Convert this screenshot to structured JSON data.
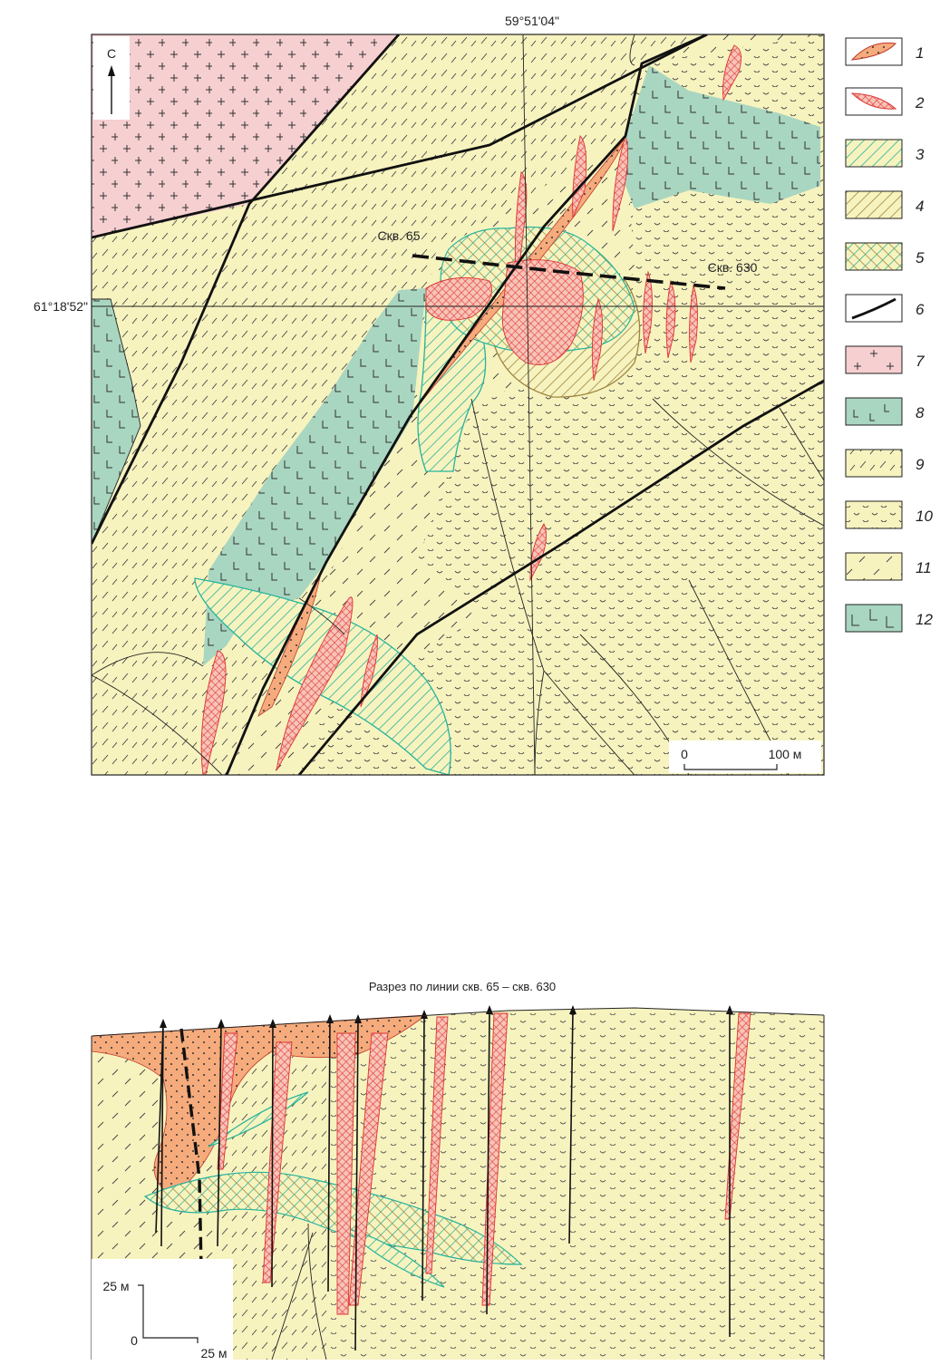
{
  "map": {
    "longitude_label": "59°51'04\"",
    "latitude_label": "61°18'52\"",
    "north_label": "С",
    "well_65_label": "Скв. 65",
    "well_630_label": "Скв. 630",
    "scale_zero": "0",
    "scale_value": "100 м"
  },
  "section": {
    "title": "Разрез по линии скв. 65 – скв. 630",
    "scale_vertical": "25 м",
    "scale_zero": "0",
    "scale_horizontal": "25 м"
  },
  "legend": {
    "items": [
      {
        "number": "1",
        "symbol": "orange-dotted-lens"
      },
      {
        "number": "2",
        "symbol": "red-crosshatch-lens"
      },
      {
        "number": "3",
        "symbol": "teal-diagonal-hatch"
      },
      {
        "number": "4",
        "symbol": "olive-diagonal-hatch"
      },
      {
        "number": "5",
        "symbol": "teal-olive-crosshatch"
      },
      {
        "number": "6",
        "symbol": "fault-line"
      },
      {
        "number": "7",
        "symbol": "pink-plus-pattern"
      },
      {
        "number": "8",
        "symbol": "green-L-pattern"
      },
      {
        "number": "9",
        "symbol": "yellow-dash-pattern"
      },
      {
        "number": "10",
        "symbol": "yellow-arc-pattern"
      },
      {
        "number": "11",
        "symbol": "yellow-sparse-dash-pattern"
      },
      {
        "number": "12",
        "symbol": "green-large-L-pattern"
      }
    ]
  },
  "colors": {
    "yellow": "#f7f3bf",
    "pink": "#f6cfd1",
    "green": "#a9d6c0",
    "orange": "#f5ab7c",
    "red": "#e8605e",
    "teal": "#26b39b",
    "olive": "#9c8540"
  }
}
